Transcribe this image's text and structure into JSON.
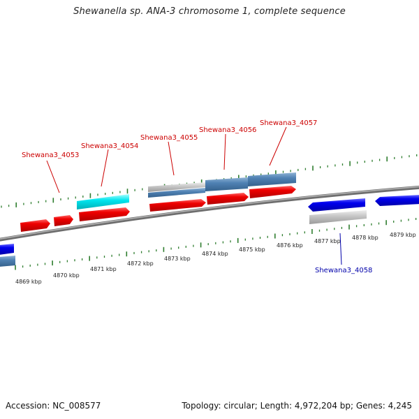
{
  "title": "Shewanella sp. ANA-3 chromosome 1, complete sequence",
  "footer": {
    "accession": "Accession: NC_008577",
    "summary": "Topology: circular; Length: 4,972,204 bp; Genes: 4,245"
  },
  "colors": {
    "forward_gene": "#ee0000",
    "reverse_gene": "#0000ee",
    "forward_label": "#cc0000",
    "reverse_label": "#0000aa",
    "cds_blue": "#4f81b3",
    "cds_cyan": "#00e5ee",
    "cds_gray": "#bdbdbd",
    "tick": "#2e7d2e",
    "backbone": "#808080"
  },
  "scale_labels": [
    "4869 kbp",
    "4870 kbp",
    "4871 kbp",
    "4872 kbp",
    "4873 kbp",
    "4874 kbp",
    "4875 kbp",
    "4876 kbp",
    "4877 kbp",
    "4878 kbp",
    "4879 kbp"
  ],
  "gene_labels": [
    {
      "text": "Shewana3_4053",
      "strand": "forward"
    },
    {
      "text": "Shewana3_4054",
      "strand": "forward"
    },
    {
      "text": "Shewana3_4055",
      "strand": "forward"
    },
    {
      "text": "Shewana3_4056",
      "strand": "forward"
    },
    {
      "text": "Shewana3_4057",
      "strand": "forward"
    },
    {
      "text": "Shewana3_4058",
      "strand": "reverse"
    }
  ]
}
